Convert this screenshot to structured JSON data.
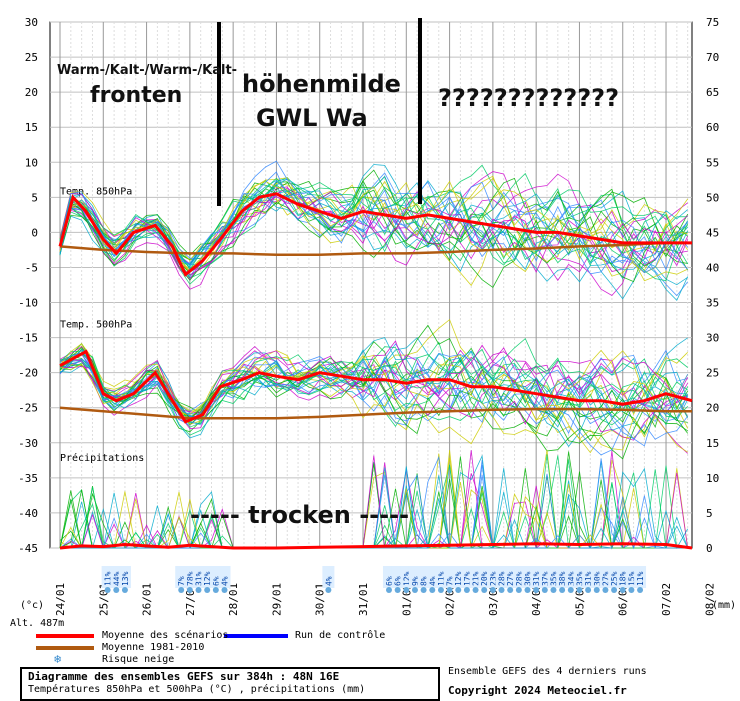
{
  "chart_data": {
    "type": "line",
    "left_axis_ticks": [
      30,
      25,
      20,
      15,
      10,
      5,
      0,
      -5,
      -10,
      -15,
      -20,
      -25,
      -30,
      -35,
      -40,
      -45
    ],
    "right_axis_ticks": [
      75,
      70,
      65,
      60,
      55,
      50,
      45,
      40,
      35,
      30,
      25,
      20,
      15,
      10,
      5,
      0
    ],
    "left_unit": "(°c)",
    "right_unit": "(mm)",
    "altitude": "Alt. 487m",
    "x_labels": [
      "24/01",
      "25/01",
      "26/01",
      "27/01",
      "28/01",
      "29/01",
      "30/01",
      "31/01",
      "01/02",
      "02/02",
      "03/02",
      "04/02",
      "05/02",
      "06/02",
      "07/02",
      "08/02"
    ],
    "panel_labels": {
      "t850": "Temp. 850hPa",
      "t500": "Temp. 500hPa",
      "precip": "Précipitations"
    },
    "snow_risk": [
      {
        "day": 1.1,
        "v": "11%"
      },
      {
        "day": 1.3,
        "v": "44%"
      },
      {
        "day": 1.5,
        "v": "13%"
      },
      {
        "day": 2.8,
        "v": "7%"
      },
      {
        "day": 3.0,
        "v": "78%"
      },
      {
        "day": 3.2,
        "v": "31%"
      },
      {
        "day": 3.4,
        "v": "12%"
      },
      {
        "day": 3.6,
        "v": "6%"
      },
      {
        "day": 3.8,
        "v": "4%"
      },
      {
        "day": 6.2,
        "v": "4%"
      },
      {
        "day": 7.6,
        "v": "6%"
      },
      {
        "day": 7.8,
        "v": "6%"
      },
      {
        "day": 8.0,
        "v": "12%"
      },
      {
        "day": 8.2,
        "v": "9%"
      },
      {
        "day": 8.4,
        "v": "8%"
      },
      {
        "day": 8.6,
        "v": "4%"
      },
      {
        "day": 8.8,
        "v": "11%"
      },
      {
        "day": 9.0,
        "v": "7%"
      },
      {
        "day": 9.2,
        "v": "12%"
      },
      {
        "day": 9.4,
        "v": "17%"
      },
      {
        "day": 9.6,
        "v": "21%"
      },
      {
        "day": 9.8,
        "v": "20%"
      },
      {
        "day": 10.0,
        "v": "23%"
      },
      {
        "day": 10.2,
        "v": "28%"
      },
      {
        "day": 10.4,
        "v": "27%"
      },
      {
        "day": 10.6,
        "v": "28%"
      },
      {
        "day": 10.8,
        "v": "30%"
      },
      {
        "day": 11.0,
        "v": "31%"
      },
      {
        "day": 11.2,
        "v": "37%"
      },
      {
        "day": 11.4,
        "v": "35%"
      },
      {
        "day": 11.6,
        "v": "38%"
      },
      {
        "day": 11.8,
        "v": "34%"
      },
      {
        "day": 12.0,
        "v": "35%"
      },
      {
        "day": 12.2,
        "v": "31%"
      },
      {
        "day": 12.4,
        "v": "30%"
      },
      {
        "day": 12.6,
        "v": "27%"
      },
      {
        "day": 12.8,
        "v": "25%"
      },
      {
        "day": 13.0,
        "v": "18%"
      },
      {
        "day": 13.2,
        "v": "15%"
      },
      {
        "day": 13.4,
        "v": "11%"
      }
    ],
    "series": [
      {
        "name": "Moyenne des scénarios",
        "color": "#ff0000",
        "t850": [
          [
            0,
            -2
          ],
          [
            0.3,
            5
          ],
          [
            0.6,
            3
          ],
          [
            1.0,
            -1
          ],
          [
            1.3,
            -3
          ],
          [
            1.7,
            0
          ],
          [
            2.2,
            1
          ],
          [
            2.6,
            -2
          ],
          [
            2.9,
            -6
          ],
          [
            3.3,
            -4
          ],
          [
            3.7,
            -1
          ],
          [
            4.2,
            3
          ],
          [
            4.6,
            5
          ],
          [
            5.0,
            5.5
          ],
          [
            5.5,
            4
          ],
          [
            6.0,
            3
          ],
          [
            6.5,
            2
          ],
          [
            7.0,
            3
          ],
          [
            7.5,
            2.5
          ],
          [
            8.0,
            2
          ],
          [
            8.5,
            2.5
          ],
          [
            9.0,
            2
          ],
          [
            9.5,
            1.5
          ],
          [
            10.0,
            1
          ],
          [
            10.5,
            0.5
          ],
          [
            11.0,
            0
          ],
          [
            11.5,
            0
          ],
          [
            12.0,
            -0.5
          ],
          [
            12.5,
            -1
          ],
          [
            13.0,
            -1.5
          ],
          [
            13.5,
            -1.5
          ],
          [
            14.0,
            -1.5
          ],
          [
            14.6,
            -1.5
          ]
        ],
        "t500": [
          [
            0,
            -19
          ],
          [
            0.3,
            -18
          ],
          [
            0.6,
            -17
          ],
          [
            1.0,
            -23
          ],
          [
            1.3,
            -24
          ],
          [
            1.7,
            -23
          ],
          [
            2.2,
            -20
          ],
          [
            2.6,
            -24
          ],
          [
            2.9,
            -27
          ],
          [
            3.3,
            -26
          ],
          [
            3.7,
            -22
          ],
          [
            4.2,
            -21
          ],
          [
            4.6,
            -20
          ],
          [
            5.0,
            -20.5
          ],
          [
            5.5,
            -21
          ],
          [
            6.0,
            -20
          ],
          [
            6.5,
            -20.5
          ],
          [
            7.0,
            -21
          ],
          [
            7.5,
            -21
          ],
          [
            8.0,
            -21.5
          ],
          [
            8.5,
            -21
          ],
          [
            9.0,
            -21
          ],
          [
            9.5,
            -22
          ],
          [
            10.0,
            -22
          ],
          [
            10.5,
            -22.5
          ],
          [
            11.0,
            -23
          ],
          [
            11.5,
            -23.5
          ],
          [
            12.0,
            -24
          ],
          [
            12.5,
            -24
          ],
          [
            13.0,
            -24.5
          ],
          [
            13.5,
            -24
          ],
          [
            14.0,
            -23
          ],
          [
            14.6,
            -24
          ]
        ],
        "precip": [
          [
            0,
            0
          ],
          [
            0.5,
            0.3
          ],
          [
            1.0,
            0.2
          ],
          [
            1.5,
            0.5
          ],
          [
            2.0,
            0.3
          ],
          [
            2.5,
            0.1
          ],
          [
            3.0,
            0.4
          ],
          [
            3.5,
            0.2
          ],
          [
            4.0,
            0
          ],
          [
            5.0,
            0
          ],
          [
            6.0,
            0.1
          ],
          [
            7.0,
            0.2
          ],
          [
            8.0,
            0.3
          ],
          [
            9.0,
            0.4
          ],
          [
            10.0,
            0.5
          ],
          [
            11.0,
            0.6
          ],
          [
            12.0,
            0.5
          ],
          [
            13.0,
            0.6
          ],
          [
            14.0,
            0.5
          ],
          [
            14.6,
            0
          ]
        ]
      },
      {
        "name": "Moyenne 1981-2010",
        "color": "#b05a10",
        "t850": [
          [
            0,
            -2
          ],
          [
            1.0,
            -2.5
          ],
          [
            2.0,
            -2.8
          ],
          [
            3.0,
            -3
          ],
          [
            4.0,
            -3
          ],
          [
            5.0,
            -3.2
          ],
          [
            6.0,
            -3.2
          ],
          [
            7.0,
            -3
          ],
          [
            8.0,
            -3
          ],
          [
            9.0,
            -2.8
          ],
          [
            10.0,
            -2.5
          ],
          [
            11.0,
            -2.3
          ],
          [
            12.0,
            -2
          ],
          [
            13.0,
            -1.8
          ],
          [
            14.0,
            -1.5
          ],
          [
            14.6,
            -1.5
          ]
        ],
        "t500": [
          [
            0,
            -25
          ],
          [
            1.0,
            -25.5
          ],
          [
            2.0,
            -26
          ],
          [
            3.0,
            -26.5
          ],
          [
            4.0,
            -26.5
          ],
          [
            5.0,
            -26.5
          ],
          [
            6.0,
            -26.3
          ],
          [
            7.0,
            -26
          ],
          [
            8.0,
            -25.7
          ],
          [
            9.0,
            -25.5
          ],
          [
            10.0,
            -25.3
          ],
          [
            11.0,
            -25.2
          ],
          [
            12.0,
            -25.2
          ],
          [
            13.0,
            -25.3
          ],
          [
            14.0,
            -25.5
          ],
          [
            14.6,
            -25.5
          ]
        ]
      },
      {
        "name": "Run de contrôle",
        "color": "#0000ff"
      }
    ],
    "snow_legend": "Risque neige"
  },
  "annotations": {
    "fronts_line1": "Warm-/Kalt-/Warm-/Kalt-",
    "fronts_line2": "fronten",
    "gwl_line1": "höhenmilde",
    "gwl_line2": "GWL Wa",
    "question": "?????????????",
    "dry": "----- trocken -----"
  },
  "footer": {
    "title": "Diagramme des ensembles GEFS sur 384h : 48N 16E",
    "subtitle": "Températures 850hPa et 500hPa (°C) , précipitations (mm)",
    "runs": "Ensemble GEFS des 4 derniers runs",
    "copyright": "Copyright 2024 Meteociel.fr"
  },
  "colors": {
    "grid": "#c0c0c0",
    "ensemble": [
      "#00b000",
      "#cc00cc",
      "#00aacc",
      "#cccc00",
      "#00cc66",
      "#3388ff"
    ]
  }
}
